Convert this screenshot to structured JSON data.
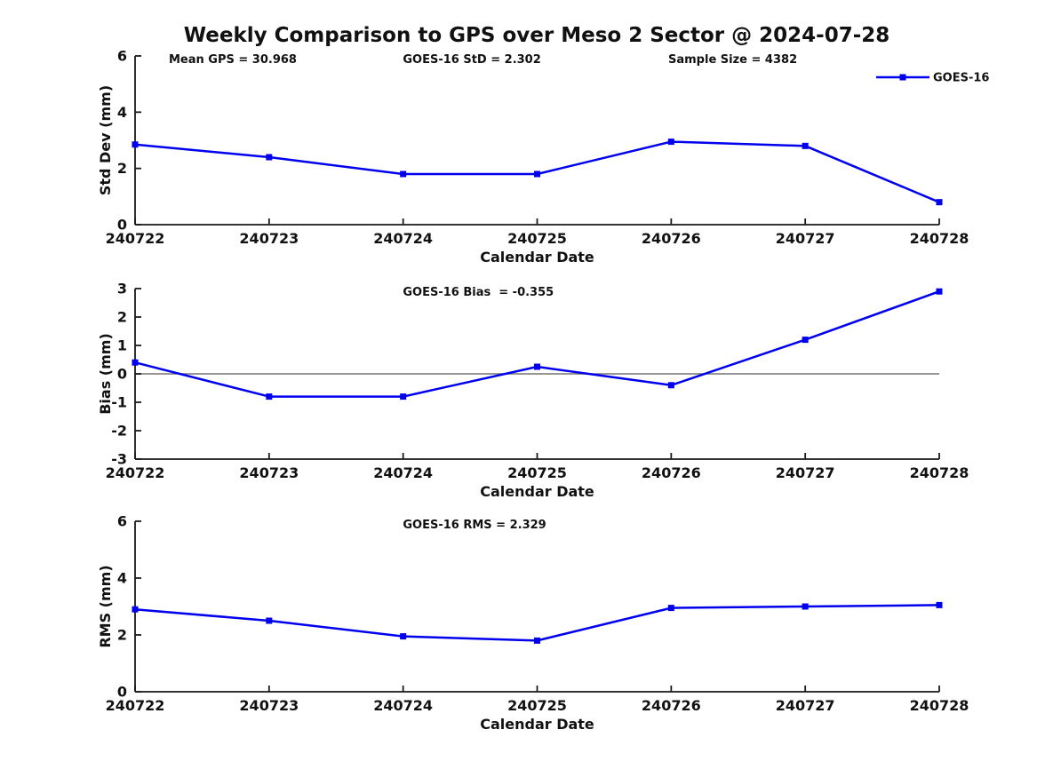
{
  "title": "Weekly Comparison to GPS over Meso 2 Sector @ 2024-07-28",
  "colors": {
    "series": "#0000EE",
    "axis": "#1a1a1a",
    "zero_line": "#737373",
    "background": "#ffffff"
  },
  "chart_data": [
    {
      "type": "line",
      "name": "std-dev",
      "ylabel": "Std Dev (mm)",
      "xlabel": "Calendar Date",
      "categories": [
        "240722",
        "240723",
        "240724",
        "240725",
        "240726",
        "240727",
        "240728"
      ],
      "series": [
        {
          "name": "GOES-16",
          "values": [
            2.85,
            2.4,
            1.8,
            1.8,
            2.95,
            2.8,
            0.8
          ]
        }
      ],
      "ylim": [
        0,
        6
      ],
      "yticks": [
        0,
        2,
        4,
        6
      ],
      "grid": false,
      "marker": "square",
      "zero_line": false,
      "annotations": [
        {
          "text": "Mean GPS = 30.968",
          "fx": 0.042
        },
        {
          "text": "GOES-16 StD = 2.302",
          "fx": 0.333
        },
        {
          "text": "Sample Size = 4382",
          "fx": 0.663
        }
      ],
      "legend": {
        "label": "GOES-16",
        "position": "top-right"
      }
    },
    {
      "type": "line",
      "name": "bias",
      "ylabel": "Bias (mm)",
      "xlabel": "Calendar Date",
      "categories": [
        "240722",
        "240723",
        "240724",
        "240725",
        "240726",
        "240727",
        "240728"
      ],
      "series": [
        {
          "name": "GOES-16",
          "values": [
            0.4,
            -0.8,
            -0.8,
            0.25,
            -0.4,
            1.2,
            2.9
          ]
        }
      ],
      "ylim": [
        -3,
        3
      ],
      "yticks": [
        3,
        2,
        1,
        0,
        -1,
        -2,
        -3
      ],
      "grid": false,
      "marker": "square",
      "zero_line": true,
      "annotations": [
        {
          "text": "GOES-16 Bias  = -0.355",
          "fx": 0.333
        }
      ],
      "legend": null
    },
    {
      "type": "line",
      "name": "rms",
      "ylabel": "RMS (mm)",
      "xlabel": "Calendar Date",
      "categories": [
        "240722",
        "240723",
        "240724",
        "240725",
        "240726",
        "240727",
        "240728"
      ],
      "series": [
        {
          "name": "GOES-16",
          "values": [
            2.9,
            2.5,
            1.95,
            1.8,
            2.95,
            3.0,
            3.05
          ]
        }
      ],
      "ylim": [
        0,
        6
      ],
      "yticks": [
        0,
        2,
        4,
        6
      ],
      "grid": false,
      "marker": "square",
      "zero_line": false,
      "annotations": [
        {
          "text": "GOES-16 RMS = 2.329",
          "fx": 0.333
        }
      ],
      "legend": null
    }
  ]
}
